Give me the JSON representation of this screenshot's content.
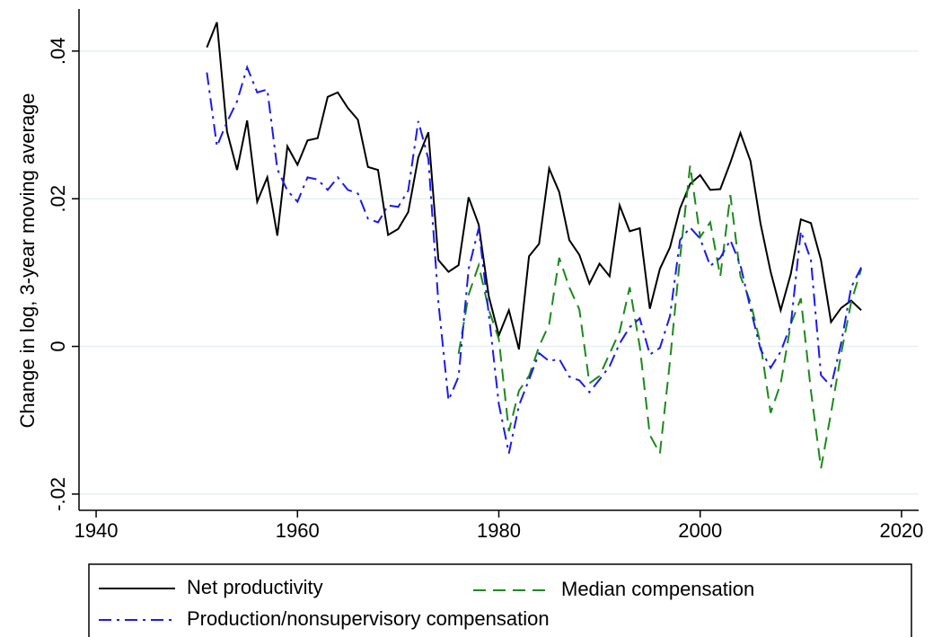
{
  "chart_data": {
    "type": "line",
    "y_label": "Change in log, 3-year moving average",
    "x": [
      1951,
      1952,
      1953,
      1954,
      1955,
      1956,
      1957,
      1958,
      1959,
      1960,
      1961,
      1962,
      1963,
      1964,
      1965,
      1966,
      1967,
      1968,
      1969,
      1970,
      1971,
      1972,
      1973,
      1974,
      1975,
      1976,
      1977,
      1978,
      1979,
      1980,
      1981,
      1982,
      1983,
      1984,
      1985,
      1986,
      1987,
      1988,
      1989,
      1990,
      1991,
      1992,
      1993,
      1994,
      1995,
      1996,
      1997,
      1998,
      1999,
      2000,
      2001,
      2002,
      2003,
      2004,
      2005,
      2006,
      2007,
      2008,
      2009,
      2010,
      2011,
      2012,
      2013,
      2014,
      2015,
      2016
    ],
    "series": [
      {
        "name": "Net productivity",
        "color": "#000000",
        "dash": "solid",
        "values": [
          0.0405,
          0.0439,
          0.0291,
          0.0239,
          0.0306,
          0.0196,
          0.0229,
          0.015,
          0.0271,
          0.0246,
          0.0279,
          0.0282,
          0.0338,
          0.0344,
          0.0323,
          0.0307,
          0.0243,
          0.0239,
          0.0151,
          0.0159,
          0.0182,
          0.0256,
          0.029,
          0.0117,
          0.0101,
          0.011,
          0.0202,
          0.0165,
          0.0068,
          0.0015,
          0.0049,
          -0.0004,
          0.0122,
          0.0139,
          0.0241,
          0.0209,
          0.0144,
          0.0124,
          0.0085,
          0.0112,
          0.0095,
          0.0191,
          0.0156,
          0.016,
          0.0051,
          0.0105,
          0.0134,
          0.0187,
          0.022,
          0.0232,
          0.0212,
          0.0213,
          0.0249,
          0.0289,
          0.0251,
          0.0166,
          0.0101,
          0.0049,
          0.0098,
          0.0172,
          0.0167,
          0.0117,
          0.0033,
          0.0052,
          0.0062,
          0.0049
        ]
      },
      {
        "name": "Median compensation",
        "color": "#1a8a1a",
        "dash": "dashed",
        "values": [
          null,
          null,
          null,
          null,
          null,
          null,
          null,
          null,
          null,
          null,
          null,
          null,
          null,
          null,
          null,
          null,
          null,
          null,
          null,
          null,
          null,
          null,
          null,
          null,
          null,
          -0.001,
          0.007,
          0.011,
          0.005,
          0.001,
          -0.0115,
          -0.006,
          -0.004,
          0.0,
          0.003,
          0.012,
          0.008,
          0.005,
          -0.005,
          -0.004,
          -0.001,
          0.002,
          0.008,
          0.0,
          -0.012,
          -0.0145,
          -0.002,
          0.012,
          0.0245,
          0.0148,
          0.0168,
          0.0095,
          0.0205,
          0.0095,
          0.006,
          0.0003,
          -0.009,
          -0.005,
          0.003,
          0.0065,
          -0.006,
          -0.0165,
          -0.009,
          -0.001,
          0.006,
          0.0105
        ]
      },
      {
        "name": "Production/nonsupervisory compensation",
        "color": "#1a1aee",
        "dash": "dashdot",
        "values": [
          0.0371,
          0.0271,
          0.0304,
          0.0332,
          0.0378,
          0.0344,
          0.0348,
          0.024,
          0.0211,
          0.0196,
          0.0229,
          0.0226,
          0.0212,
          0.0229,
          0.0212,
          0.0207,
          0.0173,
          0.0168,
          0.0191,
          0.0189,
          0.0211,
          0.0305,
          0.0254,
          0.0059,
          -0.0073,
          -0.0041,
          0.0105,
          0.016,
          0.0044,
          -0.0078,
          -0.0145,
          -0.008,
          -0.0045,
          -0.0009,
          -0.002,
          -0.0017,
          -0.0041,
          -0.0046,
          -0.0062,
          -0.0045,
          -0.0027,
          0.0004,
          0.0026,
          0.0038,
          -0.0011,
          -0.0002,
          0.0041,
          0.0144,
          0.0161,
          0.0146,
          0.0109,
          0.012,
          0.0144,
          0.011,
          0.0051,
          -0.0004,
          -0.0029,
          -0.0007,
          0.0029,
          0.0156,
          0.0117,
          -0.0039,
          -0.0054,
          0.0004,
          0.008,
          0.0107
        ]
      }
    ],
    "xlim": [
      1938.3,
      2021.7
    ],
    "xticks": [
      1940,
      1960,
      1980,
      2000,
      2020
    ],
    "ylim": [
      -0.0222,
      0.0457
    ],
    "yticks": [
      {
        "value": -0.02,
        "label": "-.02"
      },
      0,
      {
        "value": 0.02,
        "label": ".02"
      },
      {
        "value": 0.04,
        "label": ".04"
      }
    ],
    "grid": true,
    "legend": "bottom"
  }
}
